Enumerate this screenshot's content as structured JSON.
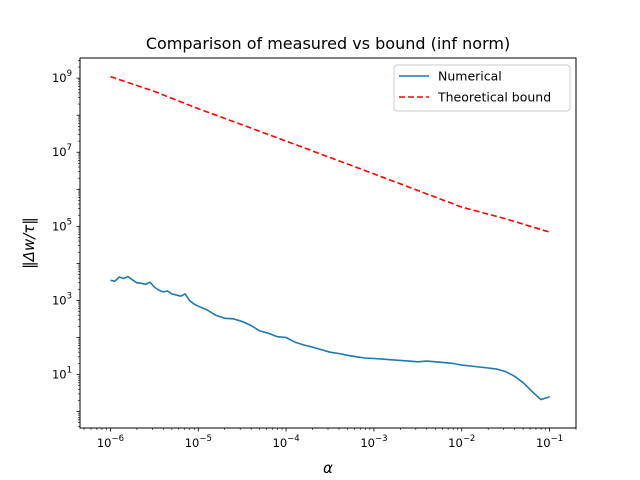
{
  "chart_data": {
    "type": "line",
    "title": "Comparison of measured vs bound (inf norm)",
    "xlabel": "α",
    "ylabel": "‖Δw/τ‖",
    "xscale": "log",
    "yscale": "log",
    "xlim": [
      4.5e-07,
      0.2
    ],
    "ylim": [
      0.36,
      3500000000.0
    ],
    "grid": false,
    "legend_position": "top-right",
    "x_ticks": [
      {
        "value": 1e-06,
        "base": "10",
        "exp": "−6"
      },
      {
        "value": 1e-05,
        "base": "10",
        "exp": "−5"
      },
      {
        "value": 0.0001,
        "base": "10",
        "exp": "−4"
      },
      {
        "value": 0.001,
        "base": "10",
        "exp": "−3"
      },
      {
        "value": 0.01,
        "base": "10",
        "exp": "−2"
      },
      {
        "value": 0.1,
        "base": "10",
        "exp": "−1"
      }
    ],
    "y_ticks": [
      {
        "value": 10,
        "base": "10",
        "exp": "1"
      },
      {
        "value": 1000,
        "base": "10",
        "exp": "3"
      },
      {
        "value": 100000,
        "base": "10",
        "exp": "5"
      },
      {
        "value": 10000000,
        "base": "10",
        "exp": "7"
      },
      {
        "value": 1000000000,
        "base": "10",
        "exp": "9"
      }
    ],
    "series": [
      {
        "name": "Numerical",
        "color": "#1f77b4",
        "style": "solid",
        "x": [
          1e-06,
          1.12e-06,
          1.26e-06,
          1.41e-06,
          1.58e-06,
          1.78e-06,
          2e-06,
          2.24e-06,
          2.51e-06,
          2.82e-06,
          3.16e-06,
          3.55e-06,
          3.98e-06,
          4.47e-06,
          5.01e-06,
          5.62e-06,
          6.31e-06,
          7.08e-06,
          7.94e-06,
          8.91e-06,
          1e-05,
          1.26e-05,
          1.58e-05,
          2e-05,
          2.51e-05,
          3.16e-05,
          3.98e-05,
          5.01e-05,
          6.31e-05,
          7.94e-05,
          0.0001,
          0.000126,
          0.000158,
          0.0002,
          0.000251,
          0.000316,
          0.000398,
          0.000501,
          0.000631,
          0.000794,
          0.001,
          0.00126,
          0.00158,
          0.002,
          0.00251,
          0.00316,
          0.00398,
          0.00501,
          0.00631,
          0.00794,
          0.01,
          0.0126,
          0.0158,
          0.02,
          0.0251,
          0.0316,
          0.0398,
          0.0501,
          0.0631,
          0.0794,
          0.1
        ],
        "values": [
          3500,
          3300,
          4300,
          3900,
          4400,
          3600,
          3000,
          2900,
          2700,
          3100,
          2300,
          1900,
          1700,
          1800,
          1500,
          1400,
          1300,
          1500,
          1000,
          800,
          700,
          550,
          400,
          330,
          320,
          270,
          210,
          150,
          130,
          105,
          100,
          75,
          63,
          55,
          47,
          40,
          37,
          33,
          30,
          28,
          27,
          26,
          25,
          24,
          23,
          22,
          23,
          22,
          21,
          20,
          18,
          17,
          16,
          15,
          14,
          12,
          9,
          6,
          3.5,
          2.1,
          2.5
        ]
      },
      {
        "name": "Theoretical bound",
        "color": "#ff0000",
        "style": "dashed",
        "x": [
          1e-06,
          3.16e-06,
          1e-05,
          3.16e-05,
          0.0001,
          0.000316,
          0.001,
          0.00316,
          0.01,
          0.0316,
          0.1
        ],
        "values": [
          1100000000.0,
          440000000.0,
          150000000.0,
          55000000.0,
          20000000.0,
          7200000.0,
          2600000.0,
          930000.0,
          330000.0,
          160000.0,
          70000.0
        ]
      }
    ]
  }
}
